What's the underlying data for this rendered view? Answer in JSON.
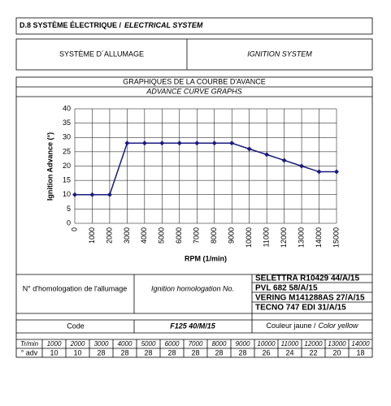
{
  "header": {
    "title": "D.8 SYSTÈME ÉLECTRIQUE /",
    "title_en": "ELECTRICAL SYSTEM"
  },
  "section": {
    "fr": "SYSTÈME D´ALLUMAGE",
    "en": "IGNITION SYSTEM"
  },
  "chart_data": {
    "type": "line",
    "title": "GRAPHIQUES DE LA COURBE D'AVANCE",
    "subtitle": "ADVANCE CURVE GRAPHS",
    "y_label": "Ignition Advance (°)",
    "x_label": "RPM (1/min)",
    "x": [
      0,
      1000,
      2000,
      3000,
      4000,
      5000,
      6000,
      7000,
      8000,
      9000,
      10000,
      11000,
      12000,
      13000,
      14000,
      15000
    ],
    "series": [
      {
        "color": "#1a1a80",
        "values": [
          10,
          10,
          10,
          28,
          28,
          28,
          28,
          28,
          28,
          28,
          26,
          24,
          22,
          20,
          18,
          18
        ]
      }
    ],
    "xlim": [
      0,
      15000
    ],
    "xticks": [
      0,
      1000,
      2000,
      3000,
      4000,
      5000,
      6000,
      7000,
      8000,
      9000,
      10000,
      11000,
      12000,
      13000,
      14000,
      15000
    ],
    "ylim": [
      0,
      40
    ],
    "yticks": [
      0,
      5,
      10,
      15,
      20,
      25,
      30,
      35,
      40
    ],
    "grid": true
  },
  "homologation": {
    "label_fr": "N° d'homologation de l'allumage",
    "label_en": "Ignition homologation No.",
    "items": [
      "SELETTRA R10429  44/A/15",
      "PVL 682  58/A/15",
      "VERING M141288AS  27/A/15",
      "TECNO 747 EDI  31/A/15"
    ]
  },
  "code": {
    "label": "Code",
    "value": "F125 40/M/15",
    "color_fr": "Couleur jaune /",
    "color_en": "Color yellow"
  },
  "table": {
    "rows": [
      [
        "Tr/min",
        1000,
        2000,
        3000,
        4000,
        5000,
        6000,
        7000,
        8000,
        9000,
        10000,
        11000,
        12000,
        13000,
        14000
      ],
      [
        "° adv",
        10,
        10,
        28,
        28,
        28,
        28,
        28,
        28,
        28,
        26,
        24,
        22,
        20,
        18
      ]
    ]
  }
}
